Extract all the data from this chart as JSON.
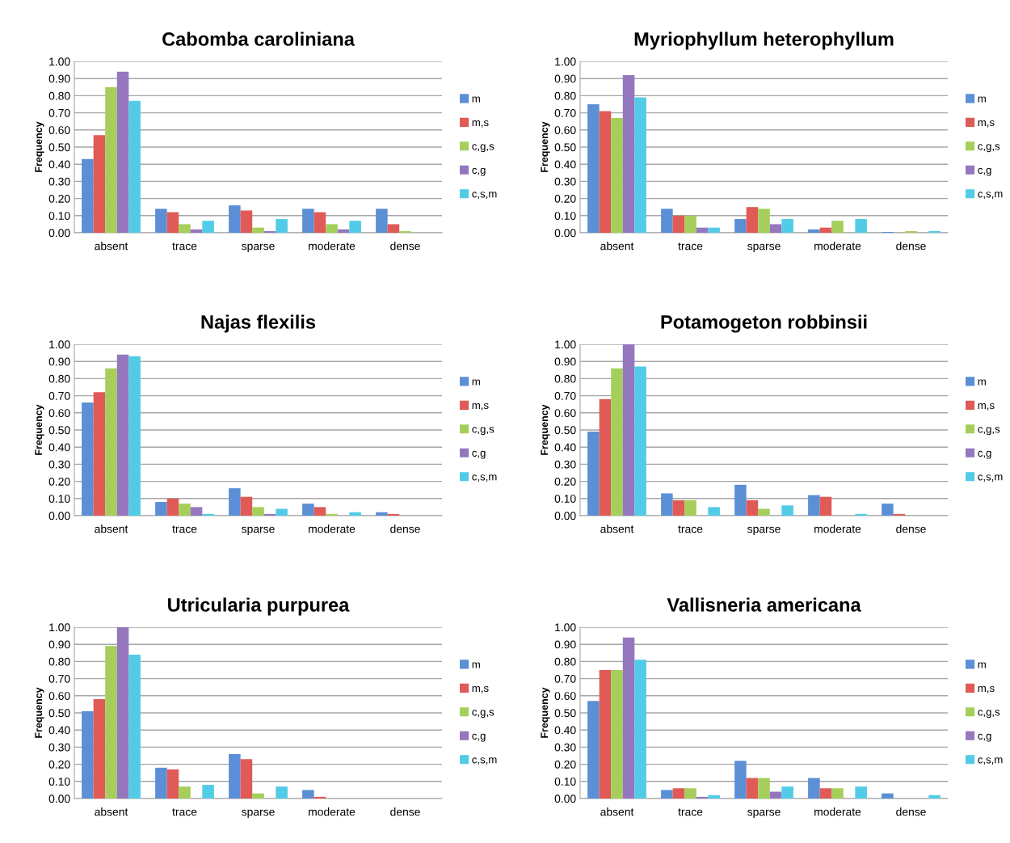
{
  "chart_data": [
    {
      "type": "bar",
      "title": "Cabomba caroliniana",
      "ylabel": "Frequency",
      "categories": [
        "absent",
        "trace",
        "sparse",
        "moderate",
        "dense"
      ],
      "ylim": [
        0,
        1
      ],
      "yticks": [
        {
          "value": 0,
          "label": "0.00"
        },
        {
          "value": 0.1,
          "label": "0.10"
        },
        {
          "value": 0.2,
          "label": "0.20"
        },
        {
          "value": 0.3,
          "label": "0.30"
        },
        {
          "value": 0.4,
          "label": "0.40"
        },
        {
          "value": 0.5,
          "label": "0.50"
        },
        {
          "value": 0.6,
          "label": "0.60"
        },
        {
          "value": 0.7,
          "label": "0.70"
        },
        {
          "value": 0.8,
          "label": "0.80"
        },
        {
          "value": 0.9,
          "label": "0.90"
        },
        {
          "value": 1,
          "label": "1.00"
        }
      ],
      "grid": "y",
      "legend": "right",
      "series": [
        {
          "name": "m",
          "color": "#5b8fd6",
          "values": [
            0.43,
            0.14,
            0.16,
            0.14,
            0.14
          ]
        },
        {
          "name": "m,s",
          "color": "#e05a57",
          "values": [
            0.57,
            0.12,
            0.13,
            0.12,
            0.05
          ]
        },
        {
          "name": "c,g,s",
          "color": "#a5cf5a",
          "values": [
            0.85,
            0.05,
            0.03,
            0.05,
            0.01
          ]
        },
        {
          "name": "c,g",
          "color": "#9577be",
          "values": [
            0.94,
            0.02,
            0.01,
            0.02,
            0
          ]
        },
        {
          "name": "c,s,m",
          "color": "#52cce6",
          "values": [
            0.77,
            0.07,
            0.08,
            0.07,
            0
          ]
        }
      ]
    },
    {
      "type": "bar",
      "title": "Myriophyllum heterophyllum",
      "ylabel": "Frequency",
      "categories": [
        "absent",
        "trace",
        "sparse",
        "moderate",
        "dense"
      ],
      "ylim": [
        0,
        1
      ],
      "yticks": [
        {
          "value": 0,
          "label": "0.00"
        },
        {
          "value": 0.1,
          "label": "0.10"
        },
        {
          "value": 0.2,
          "label": "0.20"
        },
        {
          "value": 0.3,
          "label": "0.30"
        },
        {
          "value": 0.4,
          "label": "0.40"
        },
        {
          "value": 0.5,
          "label": "0.50"
        },
        {
          "value": 0.6,
          "label": "0.60"
        },
        {
          "value": 0.7,
          "label": "0.70"
        },
        {
          "value": 0.8,
          "label": "0.80"
        },
        {
          "value": 0.9,
          "label": "0.90"
        },
        {
          "value": 1,
          "label": "1.00"
        }
      ],
      "grid": "y",
      "legend": "right",
      "series": [
        {
          "name": "m",
          "color": "#5b8fd6",
          "values": [
            0.75,
            0.14,
            0.08,
            0.02,
            0.005
          ]
        },
        {
          "name": "m,s",
          "color": "#e05a57",
          "values": [
            0.71,
            0.1,
            0.15,
            0.03,
            0
          ]
        },
        {
          "name": "c,g,s",
          "color": "#a5cf5a",
          "values": [
            0.67,
            0.1,
            0.14,
            0.07,
            0.01
          ]
        },
        {
          "name": "c,g",
          "color": "#9577be",
          "values": [
            0.92,
            0.03,
            0.05,
            0,
            0
          ]
        },
        {
          "name": "c,s,m",
          "color": "#52cce6",
          "values": [
            0.79,
            0.03,
            0.08,
            0.08,
            0.01
          ]
        }
      ]
    },
    {
      "type": "bar",
      "title": "Najas flexilis",
      "ylabel": "Frequency",
      "categories": [
        "absent",
        "trace",
        "sparse",
        "moderate",
        "dense"
      ],
      "ylim": [
        0,
        1
      ],
      "yticks": [
        {
          "value": 0,
          "label": "0.00"
        },
        {
          "value": 0.1,
          "label": "0.10"
        },
        {
          "value": 0.2,
          "label": "0.20"
        },
        {
          "value": 0.3,
          "label": "0.30"
        },
        {
          "value": 0.4,
          "label": "0.40"
        },
        {
          "value": 0.5,
          "label": "0.50"
        },
        {
          "value": 0.6,
          "label": "0.60"
        },
        {
          "value": 0.7,
          "label": "0.70"
        },
        {
          "value": 0.8,
          "label": "0.80"
        },
        {
          "value": 0.9,
          "label": "0.90"
        },
        {
          "value": 1,
          "label": "1.00"
        }
      ],
      "grid": "y",
      "legend": "right",
      "series": [
        {
          "name": "m",
          "color": "#5b8fd6",
          "values": [
            0.66,
            0.08,
            0.16,
            0.07,
            0.02
          ]
        },
        {
          "name": "m,s",
          "color": "#e05a57",
          "values": [
            0.72,
            0.1,
            0.11,
            0.05,
            0.01
          ]
        },
        {
          "name": "c,g,s",
          "color": "#a5cf5a",
          "values": [
            0.86,
            0.07,
            0.05,
            0.01,
            0
          ]
        },
        {
          "name": "c,g",
          "color": "#9577be",
          "values": [
            0.94,
            0.05,
            0.01,
            0,
            0
          ]
        },
        {
          "name": "c,s,m",
          "color": "#52cce6",
          "values": [
            0.93,
            0.01,
            0.04,
            0.02,
            0
          ]
        }
      ]
    },
    {
      "type": "bar",
      "title": "Potamogeton robbinsii",
      "ylabel": "Frequency",
      "categories": [
        "absent",
        "trace",
        "sparse",
        "moderate",
        "dense"
      ],
      "ylim": [
        0,
        1
      ],
      "yticks": [
        {
          "value": 0,
          "label": "0.00"
        },
        {
          "value": 0.1,
          "label": "0.10"
        },
        {
          "value": 0.2,
          "label": "0.20"
        },
        {
          "value": 0.3,
          "label": "0.30"
        },
        {
          "value": 0.4,
          "label": "0.40"
        },
        {
          "value": 0.5,
          "label": "0.50"
        },
        {
          "value": 0.6,
          "label": "0.60"
        },
        {
          "value": 0.7,
          "label": "0.70"
        },
        {
          "value": 0.8,
          "label": "0.80"
        },
        {
          "value": 0.9,
          "label": "0.90"
        },
        {
          "value": 1,
          "label": "1.00"
        }
      ],
      "grid": "y",
      "legend": "right",
      "series": [
        {
          "name": "m",
          "color": "#5b8fd6",
          "values": [
            0.49,
            0.13,
            0.18,
            0.12,
            0.07
          ]
        },
        {
          "name": "m,s",
          "color": "#e05a57",
          "values": [
            0.68,
            0.09,
            0.09,
            0.11,
            0.01
          ]
        },
        {
          "name": "c,g,s",
          "color": "#a5cf5a",
          "values": [
            0.86,
            0.09,
            0.04,
            0,
            0
          ]
        },
        {
          "name": "c,g",
          "color": "#9577be",
          "values": [
            1.0,
            0,
            0,
            0,
            0
          ]
        },
        {
          "name": "c,s,m",
          "color": "#52cce6",
          "values": [
            0.87,
            0.05,
            0.06,
            0.01,
            0
          ]
        }
      ]
    },
    {
      "type": "bar",
      "title": "Utricularia purpurea",
      "ylabel": "Frequency",
      "categories": [
        "absent",
        "trace",
        "sparse",
        "moderate",
        "dense"
      ],
      "ylim": [
        0,
        1
      ],
      "yticks": [
        {
          "value": 0,
          "label": "0.00"
        },
        {
          "value": 0.1,
          "label": "0.10"
        },
        {
          "value": 0.2,
          "label": "0.20"
        },
        {
          "value": 0.3,
          "label": "0.30"
        },
        {
          "value": 0.4,
          "label": "0.40"
        },
        {
          "value": 0.5,
          "label": "0.50"
        },
        {
          "value": 0.6,
          "label": "0.60"
        },
        {
          "value": 0.7,
          "label": "0.70"
        },
        {
          "value": 0.8,
          "label": "0.80"
        },
        {
          "value": 0.9,
          "label": "0.90"
        },
        {
          "value": 1,
          "label": "1.00"
        }
      ],
      "grid": "y",
      "legend": "right",
      "series": [
        {
          "name": "m",
          "color": "#5b8fd6",
          "values": [
            0.51,
            0.18,
            0.26,
            0.05,
            0
          ]
        },
        {
          "name": "m,s",
          "color": "#e05a57",
          "values": [
            0.58,
            0.17,
            0.23,
            0.01,
            0
          ]
        },
        {
          "name": "c,g,s",
          "color": "#a5cf5a",
          "values": [
            0.89,
            0.07,
            0.03,
            0,
            0
          ]
        },
        {
          "name": "c,g",
          "color": "#9577be",
          "values": [
            1.0,
            0,
            0,
            0,
            0
          ]
        },
        {
          "name": "c,s,m",
          "color": "#52cce6",
          "values": [
            0.84,
            0.08,
            0.07,
            0,
            0
          ]
        }
      ]
    },
    {
      "type": "bar",
      "title": "Vallisneria americana",
      "ylabel": "Frequency",
      "categories": [
        "absent",
        "trace",
        "sparse",
        "moderate",
        "dense"
      ],
      "ylim": [
        0,
        1
      ],
      "yticks": [
        {
          "value": 0,
          "label": "0.00"
        },
        {
          "value": 0.1,
          "label": "0.10"
        },
        {
          "value": 0.2,
          "label": "0.20"
        },
        {
          "value": 0.3,
          "label": "0.30"
        },
        {
          "value": 0.4,
          "label": "0.40"
        },
        {
          "value": 0.5,
          "label": "0.50"
        },
        {
          "value": 0.6,
          "label": "0.60"
        },
        {
          "value": 0.7,
          "label": "0.70"
        },
        {
          "value": 0.8,
          "label": "0.80"
        },
        {
          "value": 0.9,
          "label": "0.90"
        },
        {
          "value": 1,
          "label": "1.00"
        }
      ],
      "grid": "y",
      "legend": "right",
      "series": [
        {
          "name": "m",
          "color": "#5b8fd6",
          "values": [
            0.57,
            0.05,
            0.22,
            0.12,
            0.03
          ]
        },
        {
          "name": "m,s",
          "color": "#e05a57",
          "values": [
            0.75,
            0.06,
            0.12,
            0.06,
            0
          ]
        },
        {
          "name": "c,g,s",
          "color": "#a5cf5a",
          "values": [
            0.75,
            0.06,
            0.12,
            0.06,
            0
          ]
        },
        {
          "name": "c,g",
          "color": "#9577be",
          "values": [
            0.94,
            0.01,
            0.04,
            0,
            0
          ]
        },
        {
          "name": "c,s,m",
          "color": "#52cce6",
          "values": [
            0.81,
            0.02,
            0.07,
            0.07,
            0.02
          ]
        }
      ]
    }
  ]
}
